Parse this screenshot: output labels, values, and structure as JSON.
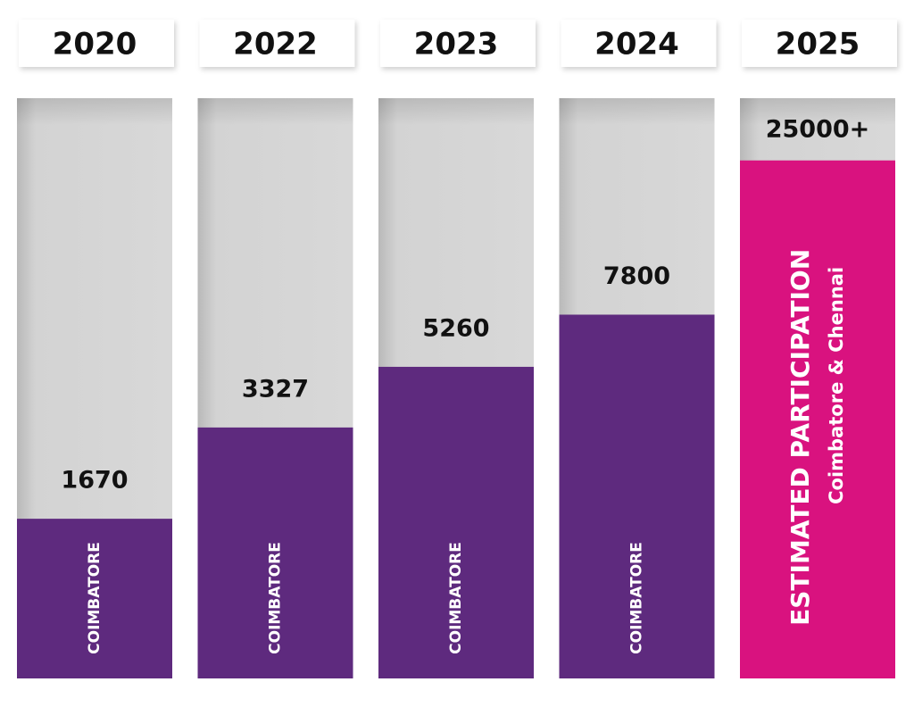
{
  "chart_data": {
    "type": "bar",
    "categories": [
      "2020",
      "2022",
      "2023",
      "2024",
      "2025"
    ],
    "values": [
      1670,
      3327,
      5260,
      7800,
      25000
    ],
    "value_labels": [
      "1670",
      "3327",
      "5260",
      "7800",
      "25000+"
    ],
    "colors": [
      "#5e2a7e",
      "#5e2a7e",
      "#5e2a7e",
      "#5e2a7e",
      "#d9127f"
    ],
    "bar_labels": [
      "COIMBATORE",
      "COIMBATORE",
      "COIMBATORE",
      "COIMBATORE",
      "ESTIMATED  PARTICIPATION"
    ],
    "bar_sublabels": [
      null,
      null,
      null,
      null,
      "Coimbatore & Chennai"
    ],
    "log_scale": true,
    "ylim": [
      500,
      40000
    ]
  }
}
